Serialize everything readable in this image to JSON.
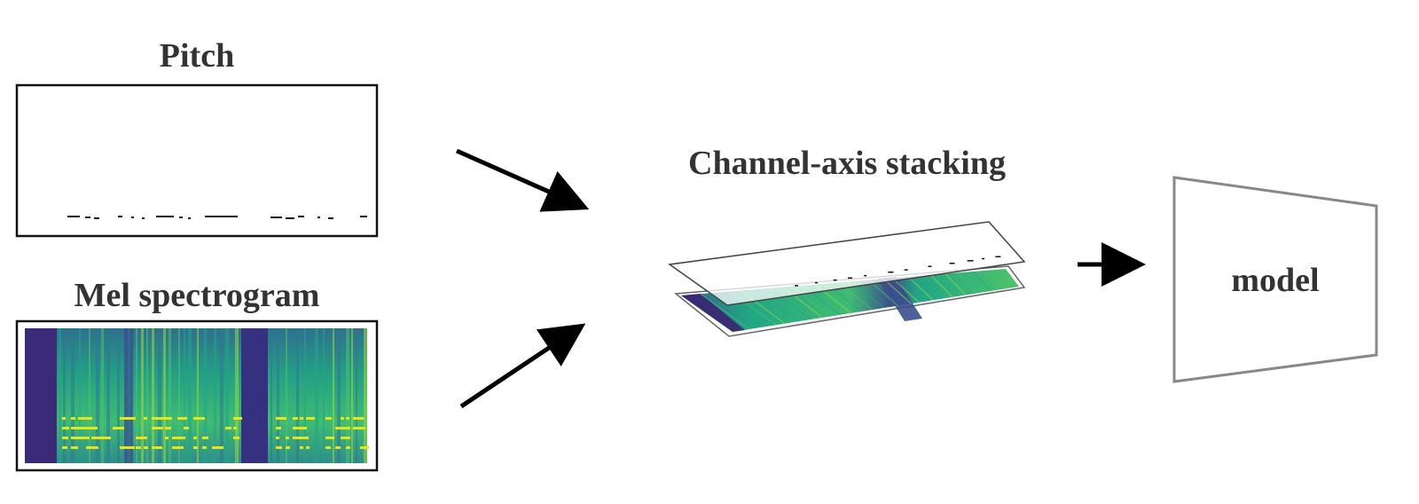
{
  "labels": {
    "pitch": "Pitch",
    "mel": "Mel spectrogram",
    "stacking": "Channel-axis stacking",
    "model": "model"
  },
  "colors": {
    "text": "#333333",
    "box_border": "#111111",
    "model_border": "#888888",
    "arrow": "#000000",
    "spectrogram_palette": [
      "#3b1f70",
      "#3e4a89",
      "#2c7a8c",
      "#21a685",
      "#4ec36b",
      "#9fda3a",
      "#e7e419"
    ]
  },
  "icons": {
    "arrow": "arrow-right",
    "model": "trapezoid-block"
  }
}
